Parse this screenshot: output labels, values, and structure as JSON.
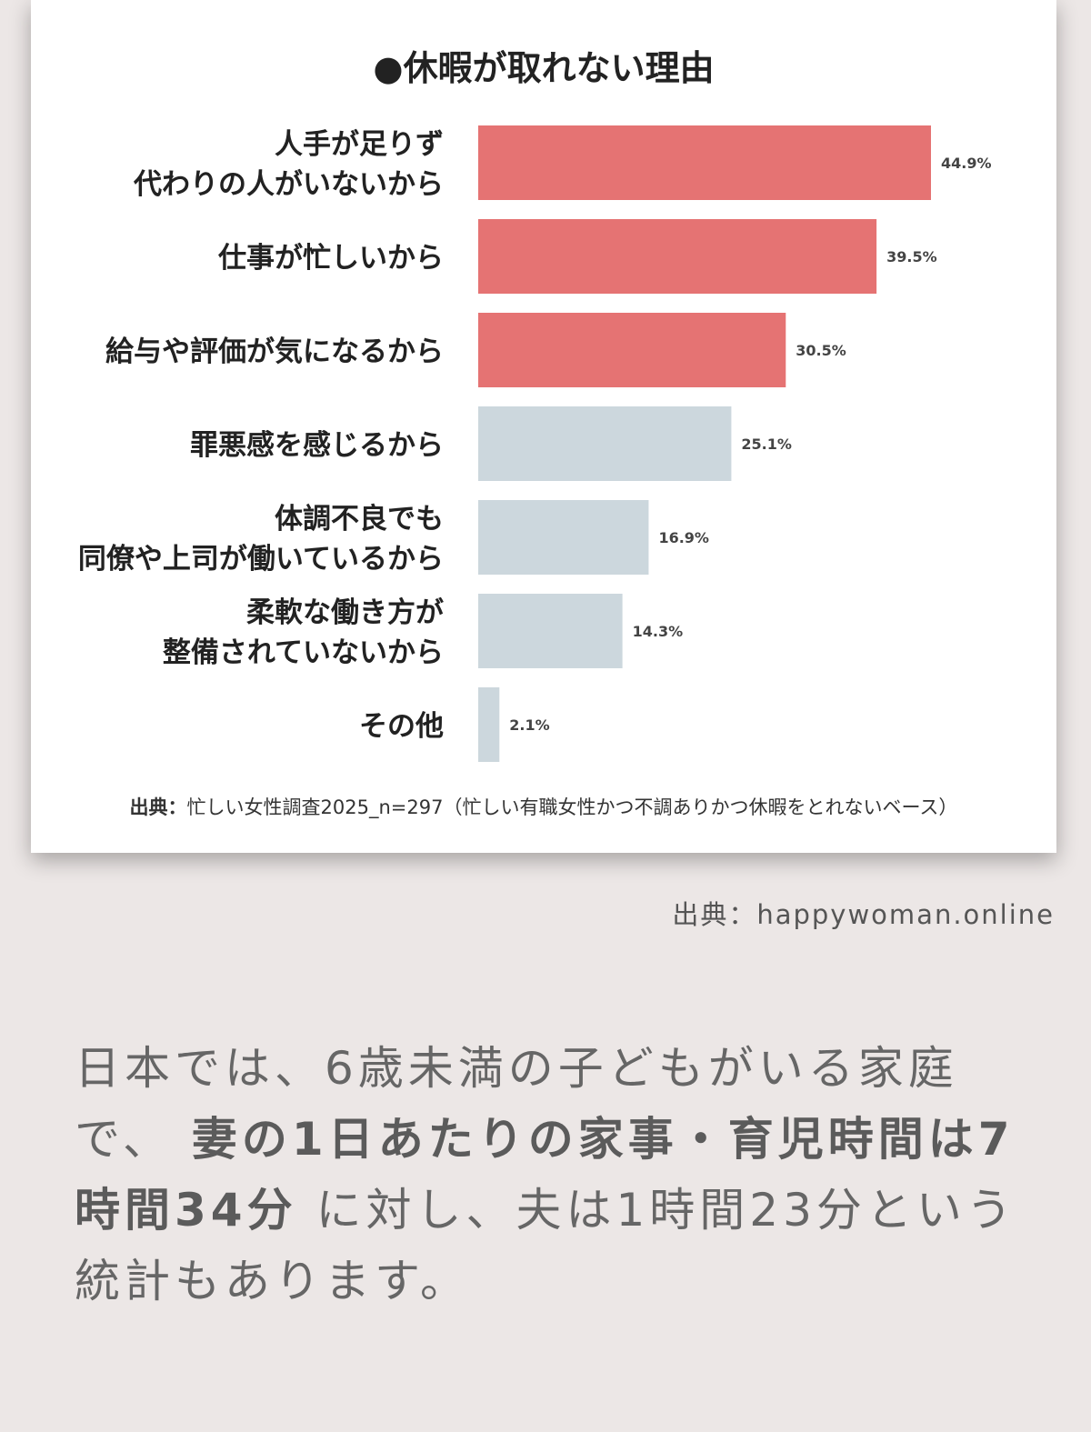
{
  "chart_data": {
    "type": "bar",
    "orientation": "horizontal",
    "title": "●休暇が取れない理由",
    "categories": [
      [
        "人手が足りず",
        "代わりの人がいないから"
      ],
      [
        "仕事が忙しいから"
      ],
      [
        "給与や評価が気になるから"
      ],
      [
        "罪悪感を感じるから"
      ],
      [
        "体調不良でも",
        "同僚や上司が働いているから"
      ],
      [
        "柔軟な働き方が",
        "整備されていないから"
      ],
      [
        "その他"
      ]
    ],
    "values": [
      44.9,
      39.5,
      30.5,
      25.1,
      16.9,
      14.3,
      2.1
    ],
    "value_labels": [
      "44.9%",
      "39.5%",
      "30.5%",
      "25.1%",
      "16.9%",
      "14.3%",
      "2.1%"
    ],
    "xlim": [
      0,
      50
    ],
    "grid": false,
    "colors": {
      "highlight": "#e57373",
      "normal": "#ccd7dd"
    },
    "highlighted_count": 3,
    "source_label": "出典：",
    "source_text": "忙しい女性調査2025_n=297（忙しい有職女性かつ不調ありかつ休暇をとれないベース）"
  },
  "credit": "出典：happywoman.online",
  "body": {
    "part1": "日本では、6歳未満の子どもがいる家庭で、",
    "bold": "妻の1日あたりの家事・育児時間は7時間34分",
    "part2": "に対し、夫は1時間23分という統計もあります。"
  }
}
